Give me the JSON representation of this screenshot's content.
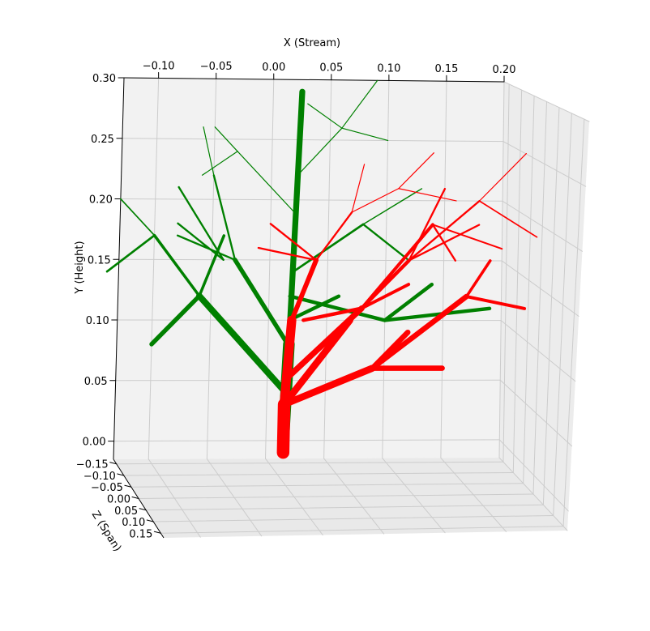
{
  "chart_data": {
    "type": "3d-line",
    "title": "",
    "xlabel": "X (Stream)",
    "ylabel": "Y (Height)",
    "zlabel": "Z (Span)",
    "xlim": [
      -0.13,
      0.2
    ],
    "ylim": [
      -0.015,
      0.3
    ],
    "zlim": [
      -0.17,
      0.17
    ],
    "x_ticks": [
      "−0.10",
      "−0.05",
      "0.00",
      "0.05",
      "0.10",
      "0.15",
      "0.20"
    ],
    "x_tick_values": [
      -0.1,
      -0.05,
      0.0,
      0.05,
      0.1,
      0.15,
      0.2
    ],
    "y_ticks": [
      "0.00",
      "0.05",
      "0.10",
      "0.15",
      "0.20",
      "0.25",
      "0.30"
    ],
    "y_tick_values": [
      0.0,
      0.05,
      0.1,
      0.15,
      0.2,
      0.25,
      0.3
    ],
    "z_ticks": [
      "−0.15",
      "−0.10",
      "−0.05",
      "0.00",
      "0.05",
      "0.10",
      "0.15"
    ],
    "z_tick_values": [
      -0.15,
      -0.1,
      -0.05,
      0.0,
      0.05,
      0.1,
      0.15
    ],
    "grid": true,
    "colors": {
      "green": "#008000",
      "red": "#ff0000",
      "pane": "#f2f2f2",
      "grid": "#cccccc"
    },
    "series": [
      {
        "color": "#008000",
        "segments": [
          [
            [
              0.015,
              0.0
            ],
            [
              0.018,
              0.08
            ],
            [
              0.025,
              0.29
            ]
          ],
          [
            [
              0.016,
              0.04
            ],
            [
              -0.06,
              0.12
            ]
          ],
          [
            [
              -0.06,
              0.12
            ],
            [
              -0.1,
              0.17
            ]
          ],
          [
            [
              -0.1,
              0.17
            ],
            [
              -0.14,
              0.14
            ]
          ],
          [
            [
              -0.1,
              0.17
            ],
            [
              -0.13,
              0.2
            ]
          ],
          [
            [
              -0.06,
              0.12
            ],
            [
              -0.04,
              0.17
            ]
          ],
          [
            [
              -0.06,
              0.12
            ],
            [
              -0.1,
              0.08
            ]
          ],
          [
            [
              -0.04,
              0.15
            ],
            [
              -0.08,
              0.18
            ]
          ],
          [
            [
              -0.04,
              0.15
            ],
            [
              -0.08,
              0.21
            ]
          ],
          [
            [
              0.017,
              0.08
            ],
            [
              -0.03,
              0.15
            ]
          ],
          [
            [
              -0.03,
              0.15
            ],
            [
              -0.05,
              0.22
            ]
          ],
          [
            [
              -0.03,
              0.15
            ],
            [
              -0.08,
              0.17
            ]
          ],
          [
            [
              -0.05,
              0.22
            ],
            [
              -0.06,
              0.26
            ]
          ],
          [
            [
              0.02,
              0.19
            ],
            [
              -0.03,
              0.24
            ]
          ],
          [
            [
              -0.03,
              0.24
            ],
            [
              -0.05,
              0.26
            ]
          ],
          [
            [
              -0.03,
              0.24
            ],
            [
              -0.06,
              0.22
            ]
          ],
          [
            [
              0.022,
              0.22
            ],
            [
              0.06,
              0.26
            ]
          ],
          [
            [
              0.06,
              0.26
            ],
            [
              0.09,
              0.3
            ]
          ],
          [
            [
              0.06,
              0.26
            ],
            [
              0.1,
              0.25
            ]
          ],
          [
            [
              0.06,
              0.26
            ],
            [
              0.03,
              0.28
            ]
          ],
          [
            [
              0.02,
              0.14
            ],
            [
              0.08,
              0.18
            ]
          ],
          [
            [
              0.08,
              0.18
            ],
            [
              0.13,
              0.21
            ]
          ],
          [
            [
              0.08,
              0.18
            ],
            [
              0.12,
              0.15
            ]
          ],
          [
            [
              0.018,
              0.1
            ],
            [
              0.06,
              0.12
            ]
          ],
          [
            [
              0.018,
              0.12
            ],
            [
              0.1,
              0.1
            ]
          ],
          [
            [
              0.1,
              0.1
            ],
            [
              0.19,
              0.11
            ]
          ],
          [
            [
              0.1,
              0.1
            ],
            [
              0.14,
              0.13
            ]
          ]
        ]
      },
      {
        "color": "#ff0000",
        "segments": [
          [
            [
              0.015,
              -0.01
            ],
            [
              0.015,
              0.03
            ],
            [
              0.02,
              0.1
            ],
            [
              0.04,
              0.15
            ]
          ],
          [
            [
              0.015,
              0.03
            ],
            [
              0.07,
              0.1
            ],
            [
              0.12,
              0.15
            ],
            [
              0.18,
              0.2
            ]
          ],
          [
            [
              0.015,
              0.03
            ],
            [
              0.09,
              0.06
            ],
            [
              0.17,
              0.12
            ]
          ],
          [
            [
              0.015,
              0.05
            ],
            [
              0.08,
              0.11
            ],
            [
              0.14,
              0.18
            ]
          ],
          [
            [
              0.04,
              0.15
            ],
            [
              0.07,
              0.19
            ],
            [
              0.11,
              0.21
            ]
          ],
          [
            [
              0.04,
              0.15
            ],
            [
              0.0,
              0.18
            ]
          ],
          [
            [
              0.04,
              0.15
            ],
            [
              -0.01,
              0.16
            ]
          ],
          [
            [
              0.07,
              0.19
            ],
            [
              0.08,
              0.23
            ]
          ],
          [
            [
              0.11,
              0.21
            ],
            [
              0.14,
              0.24
            ]
          ],
          [
            [
              0.11,
              0.21
            ],
            [
              0.16,
              0.2
            ]
          ],
          [
            [
              0.12,
              0.15
            ],
            [
              0.18,
              0.18
            ]
          ],
          [
            [
              0.12,
              0.15
            ],
            [
              0.15,
              0.21
            ]
          ],
          [
            [
              0.18,
              0.2
            ],
            [
              0.22,
              0.24
            ]
          ],
          [
            [
              0.18,
              0.2
            ],
            [
              0.23,
              0.17
            ]
          ],
          [
            [
              0.14,
              0.18
            ],
            [
              0.16,
              0.15
            ]
          ],
          [
            [
              0.14,
              0.18
            ],
            [
              0.2,
              0.16
            ]
          ],
          [
            [
              0.09,
              0.06
            ],
            [
              0.15,
              0.06
            ]
          ],
          [
            [
              0.09,
              0.06
            ],
            [
              0.12,
              0.09
            ]
          ],
          [
            [
              0.17,
              0.12
            ],
            [
              0.22,
              0.11
            ]
          ],
          [
            [
              0.17,
              0.12
            ],
            [
              0.19,
              0.15
            ]
          ],
          [
            [
              0.08,
              0.11
            ],
            [
              0.12,
              0.13
            ]
          ],
          [
            [
              0.08,
              0.11
            ],
            [
              0.03,
              0.1
            ]
          ]
        ]
      }
    ]
  }
}
